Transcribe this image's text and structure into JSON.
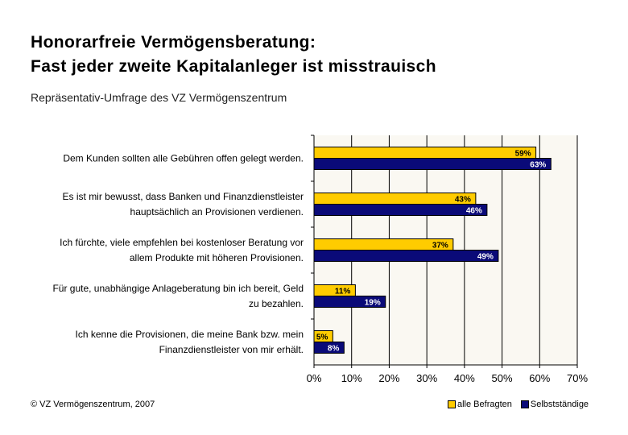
{
  "title_line1": "Honorarfreie Vermögensberatung:",
  "title_line2": "Fast jeder zweite Kapitalanleger ist misstrauisch",
  "subtitle": "Repräsentativ-Umfrage des VZ Vermögenszentrum",
  "copyright": "© VZ Vermögenszentrum, 2007",
  "colors": {
    "series1": "#FFCC00",
    "series2": "#0A0A78",
    "grid": "#000000"
  },
  "chart_data": {
    "type": "bar",
    "orientation": "horizontal",
    "categories": [
      [
        "Dem Kunden sollten alle Gebühren offen gelegt werden."
      ],
      [
        "Es ist mir bewusst, dass Banken und Finanzdienstleister",
        "hauptsächlich an Provisionen verdienen."
      ],
      [
        "Ich fürchte, viele empfehlen bei kostenloser Beratung vor",
        "allem Produkte mit höheren Provisionen."
      ],
      [
        "Für gute, unabhängige Anlageberatung bin ich bereit, Geld",
        "zu bezahlen."
      ],
      [
        "Ich kenne die Provisionen, die meine Bank bzw. mein",
        "Finanzdienstleister von mir erhält."
      ]
    ],
    "series": [
      {
        "name": "alle Befragten",
        "values": [
          59,
          43,
          37,
          11,
          5
        ],
        "labels": [
          "59%",
          "43%",
          "37%",
          "11%",
          "5%"
        ]
      },
      {
        "name": "Selbstständige",
        "values": [
          63,
          46,
          49,
          19,
          8
        ],
        "labels": [
          "63%",
          "46%",
          "49%",
          "19%",
          "8%"
        ]
      }
    ],
    "xlim": [
      0,
      70
    ],
    "xticks": [
      0,
      10,
      20,
      30,
      40,
      50,
      60,
      70
    ],
    "xtick_labels": [
      "0%",
      "10%",
      "20%",
      "30%",
      "40%",
      "50%",
      "60%",
      "70%"
    ],
    "grid": true,
    "legend_position": "bottom-right"
  }
}
